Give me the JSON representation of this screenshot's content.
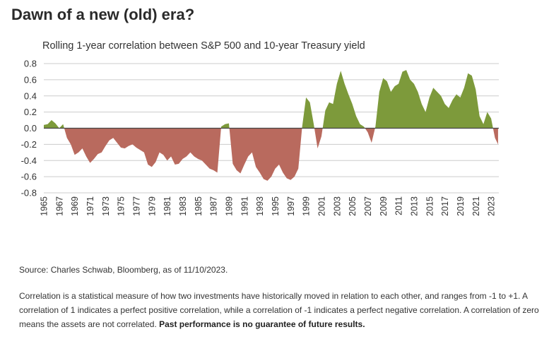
{
  "header": {
    "title": "Dawn of a new (old) era?",
    "subtitle": "Rolling 1-year correlation between S&P 500 and 10-year Treasury yield"
  },
  "footer": {
    "source": "Source: Charles Schwab, Bloomberg, as of 11/10/2023.",
    "note": "Correlation is a statistical measure of how two investments have historically moved in relation to each other, and ranges from -1 to +1. A correlation of 1 indicates a perfect positive correlation, while a correlation of -1 indicates a perfect negative correlation. A correlation of zero means the assets are not correlated.",
    "note_bold": "Past performance is no guarantee of future results."
  },
  "chart_data": {
    "type": "area",
    "title": "Rolling 1-year correlation between S&P 500 and 10-year Treasury yield",
    "xlabel": "",
    "ylabel": "",
    "xlim": [
      1965,
      2024
    ],
    "ylim": [
      -0.8,
      0.8
    ],
    "y_ticks": [
      "0.8",
      "0.6",
      "0.4",
      "0.2",
      "0.0",
      "-0.2",
      "-0.4",
      "-0.6",
      "-0.8"
    ],
    "x_ticks": [
      "1965",
      "1967",
      "1969",
      "1971",
      "1973",
      "1975",
      "1977",
      "1979",
      "1981",
      "1983",
      "1985",
      "1987",
      "1989",
      "1991",
      "1993",
      "1995",
      "1997",
      "1999",
      "2001",
      "2003",
      "2005",
      "2007",
      "2009",
      "2011",
      "2013",
      "2015",
      "2017",
      "2019",
      "2021",
      "2023"
    ],
    "grid": true,
    "colors": {
      "positive": "#7d9a3b",
      "negative": "#b96a5e",
      "grid": "#cccccc",
      "zero": "#444444"
    },
    "x": [
      1965.0,
      1965.5,
      1966.0,
      1966.5,
      1967.0,
      1967.5,
      1968.0,
      1968.5,
      1969.0,
      1969.5,
      1970.0,
      1970.5,
      1971.0,
      1971.5,
      1972.0,
      1972.5,
      1973.0,
      1973.5,
      1974.0,
      1974.5,
      1975.0,
      1975.5,
      1976.0,
      1976.5,
      1977.0,
      1977.5,
      1978.0,
      1978.5,
      1979.0,
      1979.5,
      1980.0,
      1980.5,
      1981.0,
      1981.5,
      1982.0,
      1982.5,
      1983.0,
      1983.5,
      1984.0,
      1984.5,
      1985.0,
      1985.5,
      1986.0,
      1986.5,
      1987.0,
      1987.5,
      1988.0,
      1988.5,
      1989.0,
      1989.5,
      1990.0,
      1990.5,
      1991.0,
      1991.5,
      1992.0,
      1992.5,
      1993.0,
      1993.5,
      1994.0,
      1994.5,
      1995.0,
      1995.5,
      1996.0,
      1996.5,
      1997.0,
      1997.5,
      1998.0,
      1998.5,
      1999.0,
      1999.5,
      2000.0,
      2000.5,
      2001.0,
      2001.5,
      2002.0,
      2002.5,
      2003.0,
      2003.5,
      2004.0,
      2004.5,
      2005.0,
      2005.5,
      2006.0,
      2006.5,
      2007.0,
      2007.5,
      2008.0,
      2008.5,
      2009.0,
      2009.5,
      2010.0,
      2010.5,
      2011.0,
      2011.5,
      2012.0,
      2012.5,
      2013.0,
      2013.5,
      2014.0,
      2014.5,
      2015.0,
      2015.5,
      2016.0,
      2016.5,
      2017.0,
      2017.5,
      2018.0,
      2018.5,
      2019.0,
      2019.5,
      2020.0,
      2020.5,
      2021.0,
      2021.5,
      2022.0,
      2022.5,
      2023.0,
      2023.5,
      2023.9
    ],
    "values": [
      0.04,
      0.05,
      0.1,
      0.06,
      0.0,
      0.05,
      -0.12,
      -0.2,
      -0.33,
      -0.3,
      -0.25,
      -0.35,
      -0.43,
      -0.38,
      -0.32,
      -0.3,
      -0.22,
      -0.15,
      -0.12,
      -0.18,
      -0.24,
      -0.25,
      -0.22,
      -0.2,
      -0.24,
      -0.27,
      -0.3,
      -0.45,
      -0.48,
      -0.42,
      -0.3,
      -0.33,
      -0.4,
      -0.35,
      -0.45,
      -0.44,
      -0.38,
      -0.35,
      -0.3,
      -0.35,
      -0.38,
      -0.4,
      -0.45,
      -0.5,
      -0.52,
      -0.55,
      0.02,
      0.05,
      0.06,
      -0.44,
      -0.52,
      -0.56,
      -0.45,
      -0.35,
      -0.3,
      -0.48,
      -0.55,
      -0.63,
      -0.65,
      -0.6,
      -0.5,
      -0.45,
      -0.55,
      -0.62,
      -0.64,
      -0.6,
      -0.5,
      0.02,
      0.38,
      0.32,
      0.05,
      -0.25,
      -0.1,
      0.22,
      0.32,
      0.3,
      0.55,
      0.71,
      0.55,
      0.42,
      0.3,
      0.15,
      0.05,
      0.02,
      -0.05,
      -0.18,
      0.02,
      0.45,
      0.62,
      0.58,
      0.45,
      0.52,
      0.55,
      0.7,
      0.72,
      0.6,
      0.55,
      0.45,
      0.3,
      0.2,
      0.38,
      0.5,
      0.45,
      0.4,
      0.3,
      0.25,
      0.35,
      0.42,
      0.38,
      0.5,
      0.68,
      0.65,
      0.48,
      0.15,
      0.05,
      0.2,
      0.12,
      -0.12,
      -0.2
    ]
  }
}
